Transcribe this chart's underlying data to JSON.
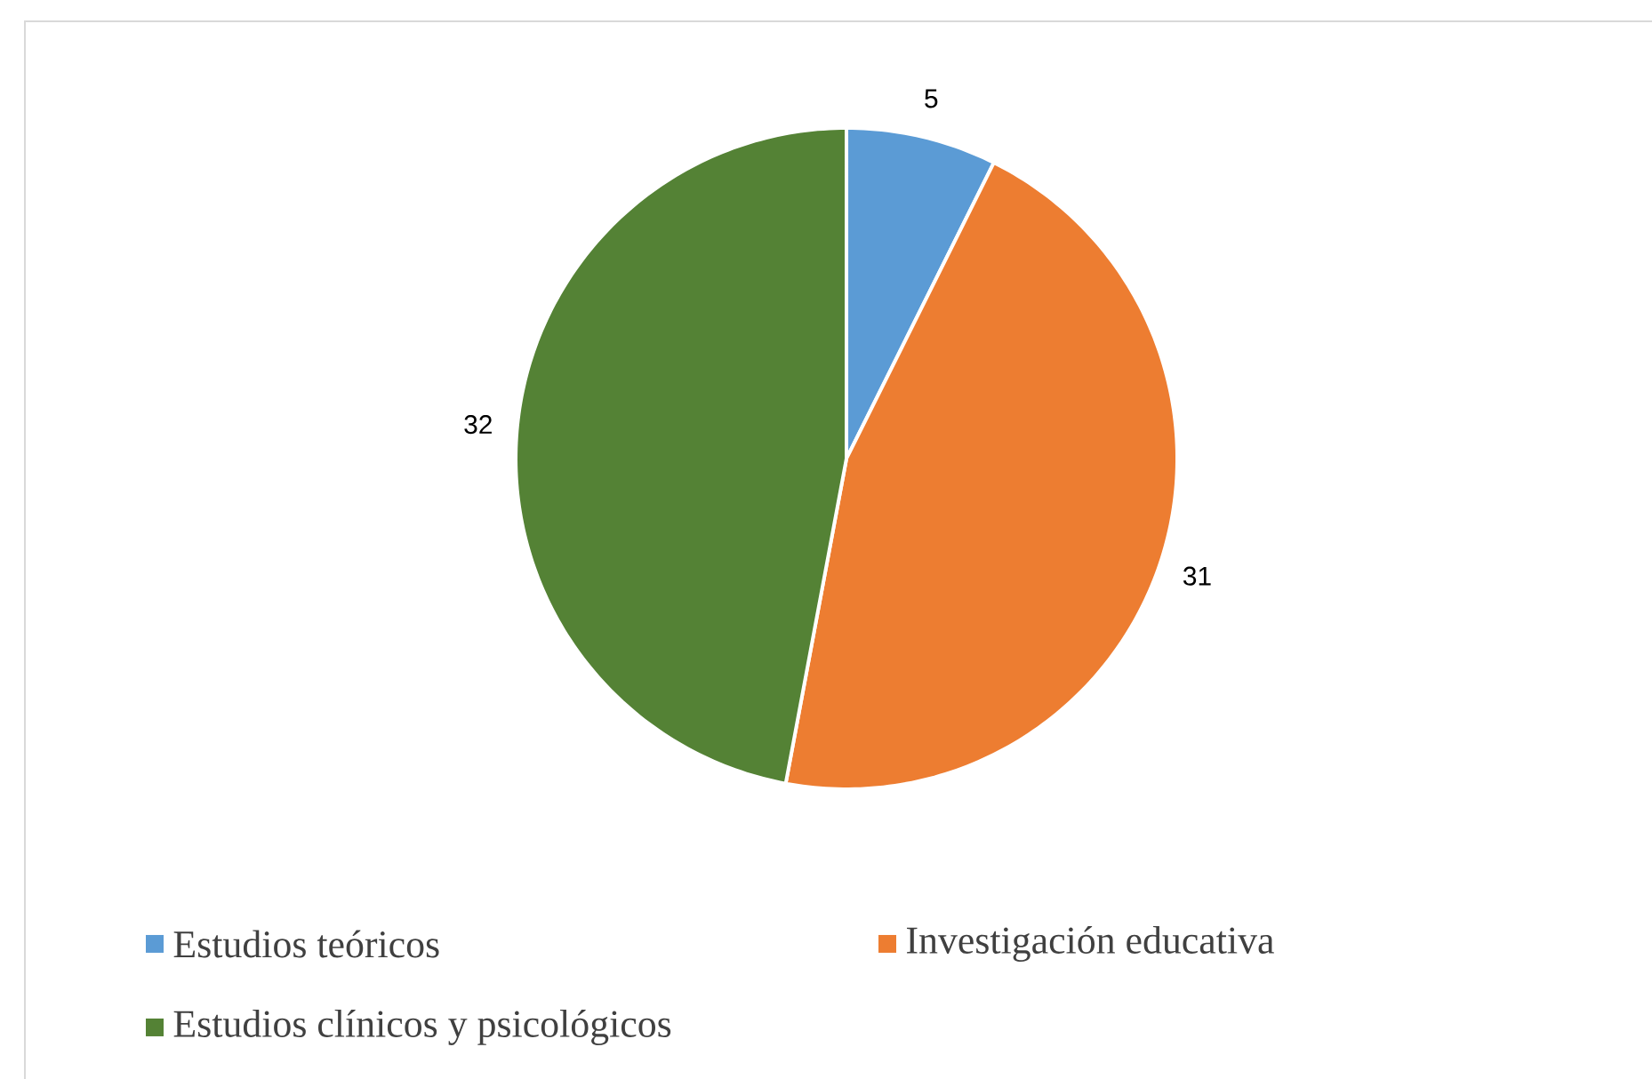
{
  "chart_data": {
    "type": "pie",
    "categories": [
      "Estudios teóricos",
      "Investigación educativa",
      "Estudios clínicos y psicológicos"
    ],
    "values": [
      5,
      31,
      32
    ],
    "colors": [
      "#5b9bd5",
      "#ed7d31",
      "#548235"
    ],
    "data_labels": true,
    "legend": "bottom"
  }
}
